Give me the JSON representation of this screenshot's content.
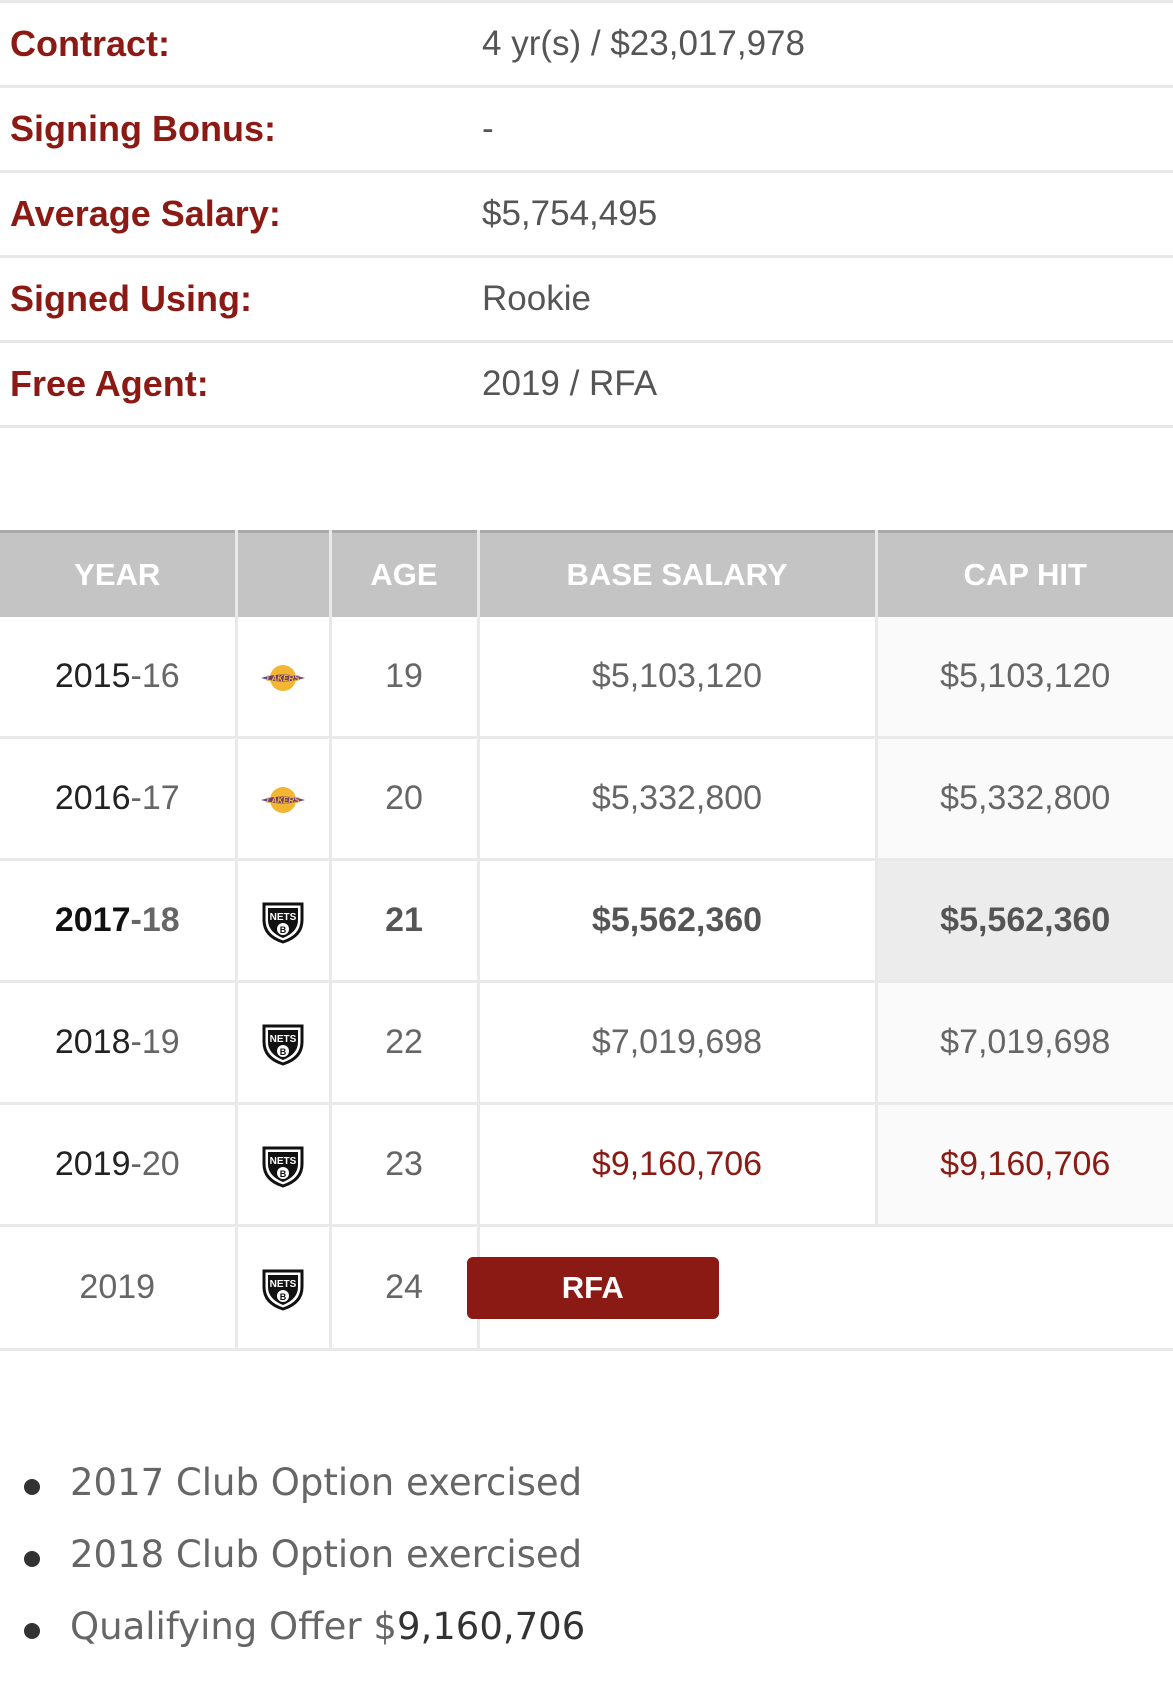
{
  "contract_info": [
    {
      "label": "Contract:",
      "value": "4 yr(s) / $23,017,978"
    },
    {
      "label": "Signing Bonus:",
      "value": "-"
    },
    {
      "label": "Average Salary:",
      "value": "$5,754,495"
    },
    {
      "label": "Signed Using:",
      "value": "Rookie"
    },
    {
      "label": "Free Agent:",
      "value": "2019 / RFA"
    }
  ],
  "table": {
    "headers": {
      "year": "YEAR",
      "team": "",
      "age": "AGE",
      "base_salary": "BASE SALARY",
      "cap_hit": "CAP HIT"
    },
    "rows": [
      {
        "year_a": "2015",
        "year_b": "-16",
        "team": "lakers-logo",
        "age": "19",
        "base_salary": "$5,103,120",
        "cap_hit": "$5,103,120"
      },
      {
        "year_a": "2016",
        "year_b": "-17",
        "team": "lakers-logo",
        "age": "20",
        "base_salary": "$5,332,800",
        "cap_hit": "$5,332,800"
      },
      {
        "year_a": "2017",
        "year_b": "-18",
        "team": "nets-logo",
        "age": "21",
        "base_salary": "$5,562,360",
        "cap_hit": "$5,562,360"
      },
      {
        "year_a": "2018",
        "year_b": "-19",
        "team": "nets-logo",
        "age": "22",
        "base_salary": "$7,019,698",
        "cap_hit": "$7,019,698"
      },
      {
        "year_a": "2019",
        "year_b": "-20",
        "team": "nets-logo",
        "age": "23",
        "base_salary": "$9,160,706",
        "cap_hit": "$9,160,706"
      }
    ],
    "fa_row": {
      "year": "2019",
      "team": "nets-logo",
      "age": "24",
      "status": "RFA"
    }
  },
  "notes": [
    {
      "text": "2017 Club Option exercised"
    },
    {
      "text": "2018 Club Option exercised"
    },
    {
      "prefix": "Qualifying Offer $",
      "amount": "9,160,706"
    }
  ],
  "colors": {
    "accent": "#8b1a14",
    "header_bg": "#c4c4c4"
  }
}
